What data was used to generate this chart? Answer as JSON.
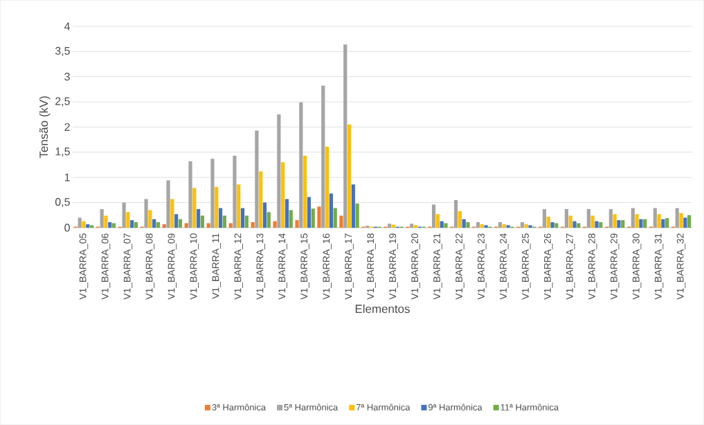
{
  "chart_data": {
    "type": "bar",
    "xlabel": "Elementos",
    "ylabel": "Tensão (kV)",
    "categories": [
      "V1_BARRA_05",
      "V1_BARRA_06",
      "V1_BARRA_07",
      "V1_BARRA_08",
      "V1_BARRA_09",
      "V1_BARRA_10",
      "V1_BARRA_11",
      "V1_BARRA_12",
      "V1_BARRA_13",
      "V1_BARRA_14",
      "V1_BARRA_15",
      "V1_BARRA_16",
      "V1_BARRA_17",
      "V1_BARRA_18",
      "V1_BARRA_19",
      "V1_BARRA_20",
      "V1_BARRA_21",
      "V1_BARRA_22",
      "V1_BARRA_23",
      "V1_BARRA_24",
      "V1_BARRA_25",
      "V1_BARRA_26",
      "V1_BARRA_27",
      "V1_BARRA_28",
      "V1_BARRA_29",
      "V1_BARRA_30",
      "V1_BARRA_31",
      "V1_BARRA_32"
    ],
    "series": [
      {
        "name": "3ª Harmônica",
        "color": "#ed7d31",
        "values": [
          0.02,
          0.02,
          0.02,
          0.02,
          0.07,
          0.09,
          0.09,
          0.09,
          0.11,
          0.13,
          0.15,
          0.42,
          0.24,
          0.02,
          0.02,
          0.02,
          0.02,
          0.02,
          0.02,
          0.02,
          0.02,
          0.02,
          0.02,
          0.02,
          0.02,
          0.02,
          0.02,
          0.02
        ]
      },
      {
        "name": "5ª Harmônica",
        "color": "#a5a5a5",
        "values": [
          0.2,
          0.37,
          0.5,
          0.57,
          0.94,
          1.32,
          1.37,
          1.43,
          1.93,
          2.25,
          2.49,
          2.82,
          3.64,
          0.04,
          0.08,
          0.08,
          0.46,
          0.55,
          0.11,
          0.11,
          0.11,
          0.37,
          0.37,
          0.37,
          0.37,
          0.39,
          0.39,
          0.39
        ]
      },
      {
        "name": "7ª Harmônica",
        "color": "#ffc000",
        "values": [
          0.13,
          0.24,
          0.31,
          0.35,
          0.57,
          0.79,
          0.81,
          0.86,
          1.12,
          1.3,
          1.43,
          1.61,
          2.05,
          0.02,
          0.06,
          0.05,
          0.27,
          0.33,
          0.07,
          0.07,
          0.07,
          0.22,
          0.24,
          0.24,
          0.27,
          0.27,
          0.27,
          0.29
        ]
      },
      {
        "name": "9ª Harmônica",
        "color": "#4472c4",
        "values": [
          0.07,
          0.11,
          0.15,
          0.17,
          0.27,
          0.37,
          0.39,
          0.39,
          0.5,
          0.57,
          0.61,
          0.68,
          0.86,
          0.02,
          0.02,
          0.02,
          0.13,
          0.17,
          0.05,
          0.05,
          0.05,
          0.11,
          0.13,
          0.13,
          0.15,
          0.17,
          0.17,
          0.2
        ]
      },
      {
        "name": "11ª Harmônica",
        "color": "#70ad47",
        "values": [
          0.05,
          0.09,
          0.11,
          0.11,
          0.17,
          0.24,
          0.24,
          0.24,
          0.31,
          0.35,
          0.38,
          0.39,
          0.48,
          0.02,
          0.02,
          0.02,
          0.09,
          0.11,
          0.02,
          0.02,
          0.02,
          0.09,
          0.09,
          0.11,
          0.15,
          0.17,
          0.19,
          0.25
        ]
      }
    ],
    "ylim": [
      0,
      4
    ],
    "yticks": [
      0,
      {
        "value": 0.5,
        "label": "0,5"
      },
      1,
      {
        "value": 1.5,
        "label": "1,5"
      },
      2,
      {
        "value": 2.5,
        "label": "2,5"
      },
      3,
      {
        "value": 3.5,
        "label": "3,5"
      },
      4
    ],
    "grid": "y",
    "legend": "bottom"
  }
}
